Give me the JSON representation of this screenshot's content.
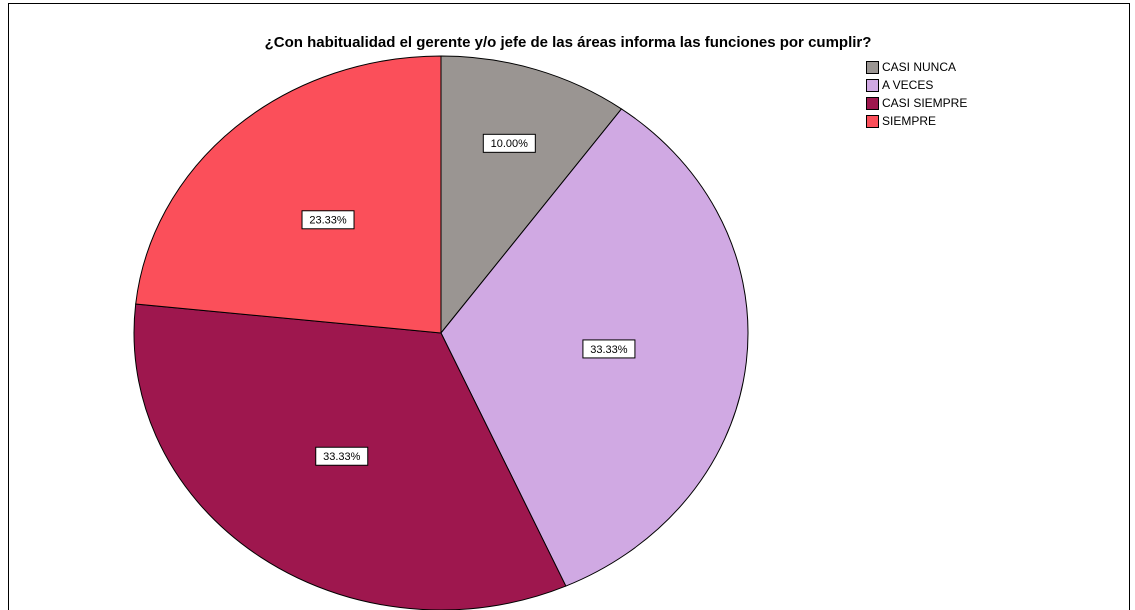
{
  "chart_data": {
    "type": "pie",
    "title": "¿Con habitualidad el gerente y/o jefe de las áreas informa las funciones por cumplir?",
    "categories": [
      "CASI NUNCA",
      "A VECES",
      "CASI SIEMPRE",
      "SIEMPRE"
    ],
    "values": [
      10,
      33.33,
      33.33,
      23.33
    ],
    "value_labels": [
      "10.00%",
      "33.33%",
      "33.33%",
      "23.33%"
    ],
    "colors": [
      "#9a9592",
      "#d0a9e3",
      "#9e174e",
      "#fb4f5a"
    ],
    "legend": "top-right"
  }
}
